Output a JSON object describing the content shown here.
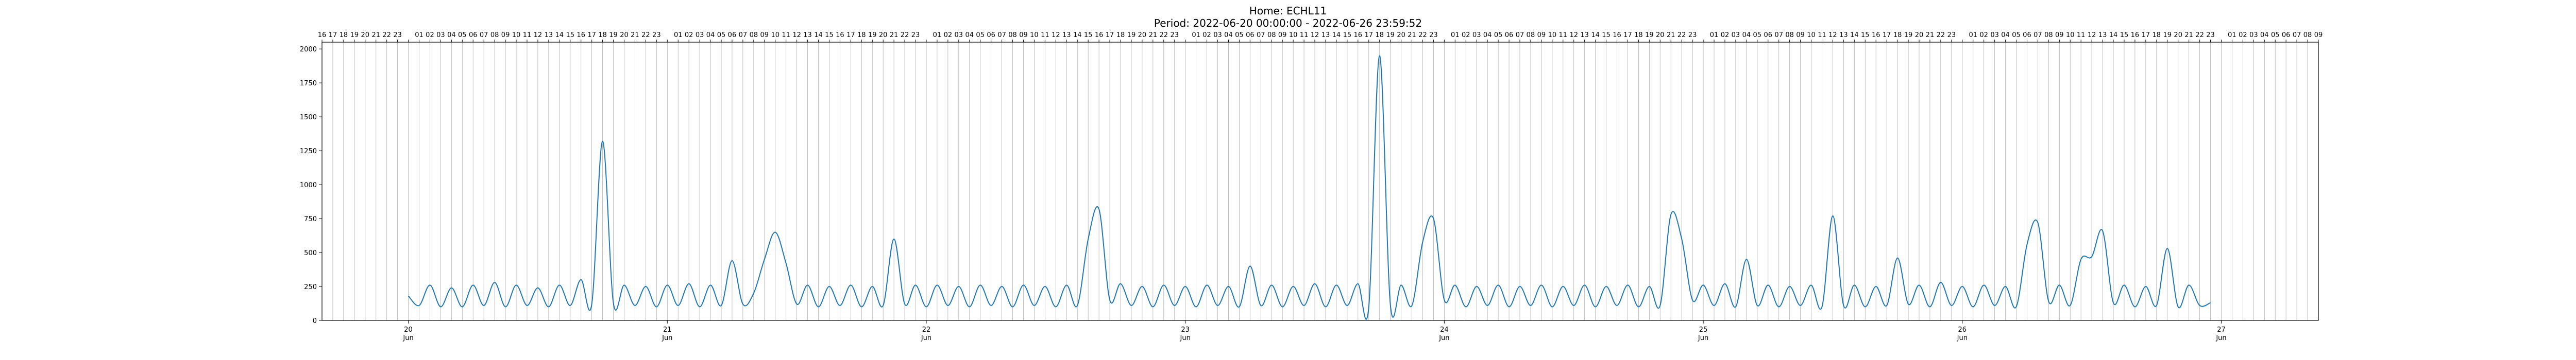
{
  "chart_data": {
    "type": "line",
    "title": "Home: ECHL11",
    "subtitle": "Period: 2022-06-20 00:00:00 - 2022-06-26 23:59:52",
    "xlabel": "",
    "ylabel": "",
    "x_range": [
      "2022-06-19 16:00",
      "2022-06-27 09:00"
    ],
    "ylim": [
      0,
      2050
    ],
    "y_ticks": [
      0,
      250,
      500,
      750,
      1000,
      1250,
      1500,
      1750,
      2000
    ],
    "x_major_ticks": [
      {
        "date": "2022-06-20",
        "day": "20",
        "month": "Jun"
      },
      {
        "date": "2022-06-21",
        "day": "21",
        "month": "Jun"
      },
      {
        "date": "2022-06-22",
        "day": "22",
        "month": "Jun"
      },
      {
        "date": "2022-06-23",
        "day": "23",
        "month": "Jun"
      },
      {
        "date": "2022-06-24",
        "day": "24",
        "month": "Jun"
      },
      {
        "date": "2022-06-25",
        "day": "25",
        "month": "Jun"
      },
      {
        "date": "2022-06-26",
        "day": "26",
        "month": "Jun"
      },
      {
        "date": "2022-06-27",
        "day": "27",
        "month": "Jun"
      }
    ],
    "top_axis": "hour-of-day labels (00 omitted), one vertical gridline per hour",
    "grid": {
      "vertical_hourly": true,
      "horizontal": false
    },
    "series": [
      {
        "color": "#1f77b4",
        "points": [
          [
            "2022-06-20 00:00",
            180
          ],
          [
            "2022-06-20 01:00",
            110
          ],
          [
            "2022-06-20 02:00",
            260
          ],
          [
            "2022-06-20 03:00",
            100
          ],
          [
            "2022-06-20 04:00",
            240
          ],
          [
            "2022-06-20 05:00",
            100
          ],
          [
            "2022-06-20 06:00",
            260
          ],
          [
            "2022-06-20 07:00",
            110
          ],
          [
            "2022-06-20 08:00",
            280
          ],
          [
            "2022-06-20 09:00",
            100
          ],
          [
            "2022-06-20 10:00",
            260
          ],
          [
            "2022-06-20 11:00",
            110
          ],
          [
            "2022-06-20 12:00",
            240
          ],
          [
            "2022-06-20 13:00",
            100
          ],
          [
            "2022-06-20 14:00",
            260
          ],
          [
            "2022-06-20 15:00",
            110
          ],
          [
            "2022-06-20 16:00",
            300
          ],
          [
            "2022-06-20 17:00",
            120
          ],
          [
            "2022-06-20 18:00",
            1320
          ],
          [
            "2022-06-20 19:00",
            130
          ],
          [
            "2022-06-20 20:00",
            260
          ],
          [
            "2022-06-20 21:00",
            110
          ],
          [
            "2022-06-20 22:00",
            250
          ],
          [
            "2022-06-20 23:00",
            100
          ],
          [
            "2022-06-21 00:00",
            260
          ],
          [
            "2022-06-21 01:00",
            110
          ],
          [
            "2022-06-21 02:00",
            270
          ],
          [
            "2022-06-21 03:00",
            100
          ],
          [
            "2022-06-21 04:00",
            260
          ],
          [
            "2022-06-21 05:00",
            110
          ],
          [
            "2022-06-21 06:00",
            440
          ],
          [
            "2022-06-21 07:00",
            120
          ],
          [
            "2022-06-21 08:00",
            200
          ],
          [
            "2022-06-21 09:00",
            450
          ],
          [
            "2022-06-21 10:00",
            650
          ],
          [
            "2022-06-21 11:00",
            420
          ],
          [
            "2022-06-21 12:00",
            120
          ],
          [
            "2022-06-21 13:00",
            260
          ],
          [
            "2022-06-21 14:00",
            100
          ],
          [
            "2022-06-21 15:00",
            250
          ],
          [
            "2022-06-21 16:00",
            110
          ],
          [
            "2022-06-21 17:00",
            260
          ],
          [
            "2022-06-21 18:00",
            100
          ],
          [
            "2022-06-21 19:00",
            250
          ],
          [
            "2022-06-21 20:00",
            110
          ],
          [
            "2022-06-21 21:00",
            600
          ],
          [
            "2022-06-21 22:00",
            120
          ],
          [
            "2022-06-21 23:00",
            260
          ],
          [
            "2022-06-22 00:00",
            100
          ],
          [
            "2022-06-22 01:00",
            260
          ],
          [
            "2022-06-22 02:00",
            110
          ],
          [
            "2022-06-22 03:00",
            250
          ],
          [
            "2022-06-22 04:00",
            100
          ],
          [
            "2022-06-22 05:00",
            260
          ],
          [
            "2022-06-22 06:00",
            110
          ],
          [
            "2022-06-22 07:00",
            250
          ],
          [
            "2022-06-22 08:00",
            100
          ],
          [
            "2022-06-22 09:00",
            260
          ],
          [
            "2022-06-22 10:00",
            110
          ],
          [
            "2022-06-22 11:00",
            250
          ],
          [
            "2022-06-22 12:00",
            100
          ],
          [
            "2022-06-22 13:00",
            260
          ],
          [
            "2022-06-22 14:00",
            110
          ],
          [
            "2022-06-22 15:00",
            600
          ],
          [
            "2022-06-22 16:00",
            820
          ],
          [
            "2022-06-22 17:00",
            150
          ],
          [
            "2022-06-22 18:00",
            270
          ],
          [
            "2022-06-22 19:00",
            110
          ],
          [
            "2022-06-22 20:00",
            250
          ],
          [
            "2022-06-22 21:00",
            100
          ],
          [
            "2022-06-22 22:00",
            260
          ],
          [
            "2022-06-22 23:00",
            110
          ],
          [
            "2022-06-23 00:00",
            250
          ],
          [
            "2022-06-23 01:00",
            100
          ],
          [
            "2022-06-23 02:00",
            260
          ],
          [
            "2022-06-23 03:00",
            110
          ],
          [
            "2022-06-23 04:00",
            250
          ],
          [
            "2022-06-23 05:00",
            100
          ],
          [
            "2022-06-23 06:00",
            400
          ],
          [
            "2022-06-23 07:00",
            110
          ],
          [
            "2022-06-23 08:00",
            260
          ],
          [
            "2022-06-23 09:00",
            100
          ],
          [
            "2022-06-23 10:00",
            250
          ],
          [
            "2022-06-23 11:00",
            110
          ],
          [
            "2022-06-23 12:00",
            270
          ],
          [
            "2022-06-23 13:00",
            100
          ],
          [
            "2022-06-23 14:00",
            260
          ],
          [
            "2022-06-23 15:00",
            110
          ],
          [
            "2022-06-23 16:00",
            270
          ],
          [
            "2022-06-23 17:00",
            100
          ],
          [
            "2022-06-23 18:00",
            1950
          ],
          [
            "2022-06-23 19:00",
            120
          ],
          [
            "2022-06-23 20:00",
            260
          ],
          [
            "2022-06-23 21:00",
            110
          ],
          [
            "2022-06-23 22:00",
            580
          ],
          [
            "2022-06-23 23:00",
            750
          ],
          [
            "2022-06-24 00:00",
            150
          ],
          [
            "2022-06-24 01:00",
            260
          ],
          [
            "2022-06-24 02:00",
            100
          ],
          [
            "2022-06-24 03:00",
            250
          ],
          [
            "2022-06-24 04:00",
            110
          ],
          [
            "2022-06-24 05:00",
            260
          ],
          [
            "2022-06-24 06:00",
            100
          ],
          [
            "2022-06-24 07:00",
            250
          ],
          [
            "2022-06-24 08:00",
            110
          ],
          [
            "2022-06-24 09:00",
            260
          ],
          [
            "2022-06-24 10:00",
            100
          ],
          [
            "2022-06-24 11:00",
            250
          ],
          [
            "2022-06-24 12:00",
            110
          ],
          [
            "2022-06-24 13:00",
            260
          ],
          [
            "2022-06-24 14:00",
            100
          ],
          [
            "2022-06-24 15:00",
            250
          ],
          [
            "2022-06-24 16:00",
            110
          ],
          [
            "2022-06-24 17:00",
            260
          ],
          [
            "2022-06-24 18:00",
            100
          ],
          [
            "2022-06-24 19:00",
            250
          ],
          [
            "2022-06-24 20:00",
            110
          ],
          [
            "2022-06-24 21:00",
            780
          ],
          [
            "2022-06-24 22:00",
            600
          ],
          [
            "2022-06-24 23:00",
            150
          ],
          [
            "2022-06-25 00:00",
            260
          ],
          [
            "2022-06-25 01:00",
            110
          ],
          [
            "2022-06-25 02:00",
            270
          ],
          [
            "2022-06-25 03:00",
            100
          ],
          [
            "2022-06-25 04:00",
            450
          ],
          [
            "2022-06-25 05:00",
            110
          ],
          [
            "2022-06-25 06:00",
            260
          ],
          [
            "2022-06-25 07:00",
            100
          ],
          [
            "2022-06-25 08:00",
            250
          ],
          [
            "2022-06-25 09:00",
            110
          ],
          [
            "2022-06-25 10:00",
            260
          ],
          [
            "2022-06-25 11:00",
            100
          ],
          [
            "2022-06-25 12:00",
            770
          ],
          [
            "2022-06-25 13:00",
            110
          ],
          [
            "2022-06-25 14:00",
            260
          ],
          [
            "2022-06-25 15:00",
            100
          ],
          [
            "2022-06-25 16:00",
            250
          ],
          [
            "2022-06-25 17:00",
            110
          ],
          [
            "2022-06-25 18:00",
            460
          ],
          [
            "2022-06-25 19:00",
            120
          ],
          [
            "2022-06-25 20:00",
            260
          ],
          [
            "2022-06-25 21:00",
            100
          ],
          [
            "2022-06-25 22:00",
            280
          ],
          [
            "2022-06-25 23:00",
            110
          ],
          [
            "2022-06-26 00:00",
            250
          ],
          [
            "2022-06-26 01:00",
            100
          ],
          [
            "2022-06-26 02:00",
            260
          ],
          [
            "2022-06-26 03:00",
            110
          ],
          [
            "2022-06-26 04:00",
            250
          ],
          [
            "2022-06-26 05:00",
            100
          ],
          [
            "2022-06-26 06:00",
            560
          ],
          [
            "2022-06-26 07:00",
            720
          ],
          [
            "2022-06-26 08:00",
            140
          ],
          [
            "2022-06-26 09:00",
            260
          ],
          [
            "2022-06-26 10:00",
            110
          ],
          [
            "2022-06-26 11:00",
            450
          ],
          [
            "2022-06-26 12:00",
            470
          ],
          [
            "2022-06-26 13:00",
            660
          ],
          [
            "2022-06-26 14:00",
            130
          ],
          [
            "2022-06-26 15:00",
            260
          ],
          [
            "2022-06-26 16:00",
            100
          ],
          [
            "2022-06-26 17:00",
            250
          ],
          [
            "2022-06-26 18:00",
            110
          ],
          [
            "2022-06-26 19:00",
            530
          ],
          [
            "2022-06-26 20:00",
            100
          ],
          [
            "2022-06-26 21:00",
            260
          ],
          [
            "2022-06-26 22:00",
            110
          ],
          [
            "2022-06-26 23:00",
            130
          ]
        ]
      }
    ]
  }
}
